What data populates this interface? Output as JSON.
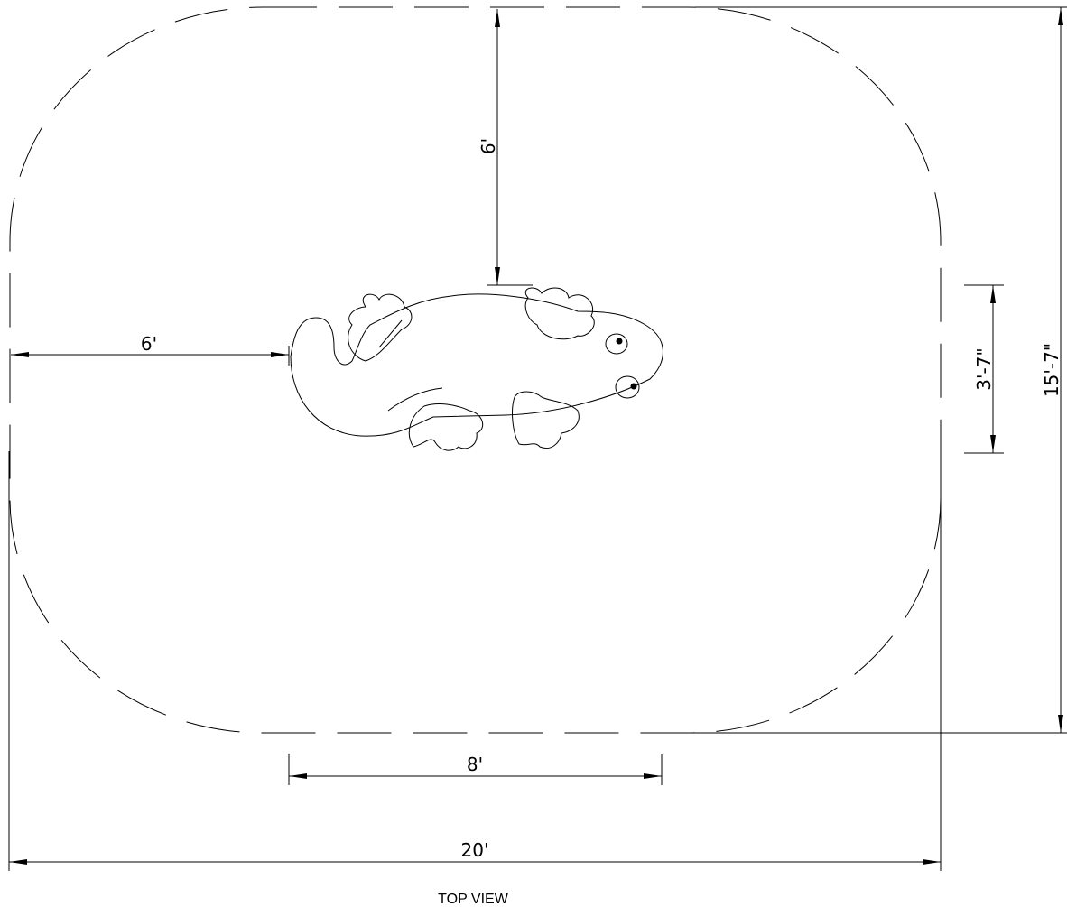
{
  "dimensions": {
    "top_clearance": "6'",
    "left_clearance": "6'",
    "item_length": "8'",
    "overall_length": "20'",
    "item_width": "3'-7\"",
    "overall_width": "15'-7\""
  },
  "caption": "TOP VIEW"
}
